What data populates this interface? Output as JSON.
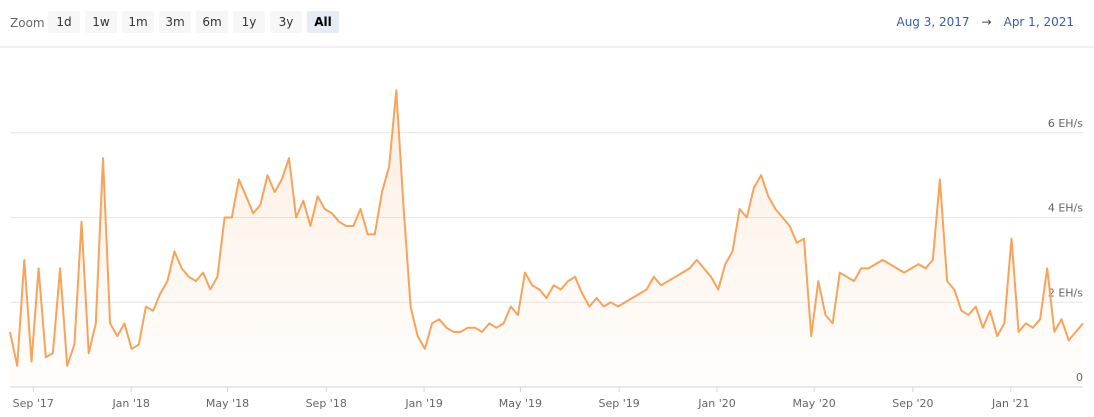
{
  "toolbar": {
    "zoom_label": "Zoom",
    "buttons": [
      "1d",
      "1w",
      "1m",
      "3m",
      "6m",
      "1y",
      "3y",
      "All"
    ],
    "arrow": "→"
  },
  "chart_data": {
    "type": "line",
    "area": true,
    "color": "#f7a35c",
    "range_from": "Aug 3, 2017",
    "range_to": "Apr 1, 2021",
    "values": [
      1.3,
      0.5,
      3.0,
      0.6,
      2.8,
      0.7,
      0.8,
      2.8,
      0.5,
      1.0,
      3.9,
      0.8,
      1.5,
      5.4,
      1.5,
      1.2,
      1.5,
      0.9,
      1.0,
      1.9,
      1.8,
      2.2,
      2.5,
      3.2,
      2.8,
      2.6,
      2.5,
      2.7,
      2.3,
      2.6,
      4.0,
      4.0,
      4.9,
      4.5,
      4.1,
      4.3,
      5.0,
      4.6,
      4.9,
      5.4,
      4.0,
      4.4,
      3.8,
      4.5,
      4.2,
      4.1,
      3.9,
      3.8,
      3.8,
      4.2,
      3.6,
      3.6,
      4.6,
      5.2,
      7.0,
      4.3,
      1.9,
      1.2,
      0.9,
      1.5,
      1.6,
      1.4,
      1.3,
      1.3,
      1.4,
      1.4,
      1.3,
      1.5,
      1.4,
      1.5,
      1.9,
      1.7,
      2.7,
      2.4,
      2.3,
      2.1,
      2.4,
      2.3,
      2.5,
      2.6,
      2.2,
      1.9,
      2.1,
      1.9,
      2.0,
      1.9,
      2.0,
      2.1,
      2.2,
      2.3,
      2.6,
      2.4,
      2.5,
      2.6,
      2.7,
      2.8,
      3.0,
      2.8,
      2.6,
      2.3,
      2.9,
      3.2,
      4.2,
      4.0,
      4.7,
      5.0,
      4.5,
      4.2,
      4.0,
      3.8,
      3.4,
      3.5,
      1.2,
      2.5,
      1.7,
      1.5,
      2.7,
      2.6,
      2.5,
      2.8,
      2.8,
      2.9,
      3.0,
      2.9,
      2.8,
      2.7,
      2.8,
      2.9,
      2.8,
      3.0,
      4.9,
      2.5,
      2.3,
      1.8,
      1.7,
      1.9,
      1.4,
      1.8,
      1.2,
      1.5,
      3.5,
      1.3,
      1.5,
      1.4,
      1.6,
      2.8,
      1.3,
      1.6,
      1.1,
      1.3,
      1.5
    ],
    "ylim": [
      0,
      8
    ],
    "yticks": [
      0,
      {
        "value": 2,
        "label": "2 EH/s"
      },
      {
        "value": 4,
        "label": "4 EH/s"
      },
      {
        "value": 6,
        "label": "6 EH/s"
      }
    ],
    "xticks": [
      {
        "value": "2017-09",
        "label": "Sep '17"
      },
      {
        "value": "2018-01",
        "label": "Jan '18"
      },
      {
        "value": "2018-05",
        "label": "May '18"
      },
      {
        "value": "2018-09",
        "label": "Sep '18"
      },
      {
        "value": "2019-01",
        "label": "Jan '19"
      },
      {
        "value": "2019-05",
        "label": "May '19"
      },
      {
        "value": "2019-09",
        "label": "Sep '19"
      },
      {
        "value": "2020-01",
        "label": "Jan '20"
      },
      {
        "value": "2020-05",
        "label": "May '20"
      },
      {
        "value": "2020-09",
        "label": "Sep '20"
      },
      {
        "value": "2021-01",
        "label": "Jan '21"
      }
    ],
    "grid": true
  }
}
